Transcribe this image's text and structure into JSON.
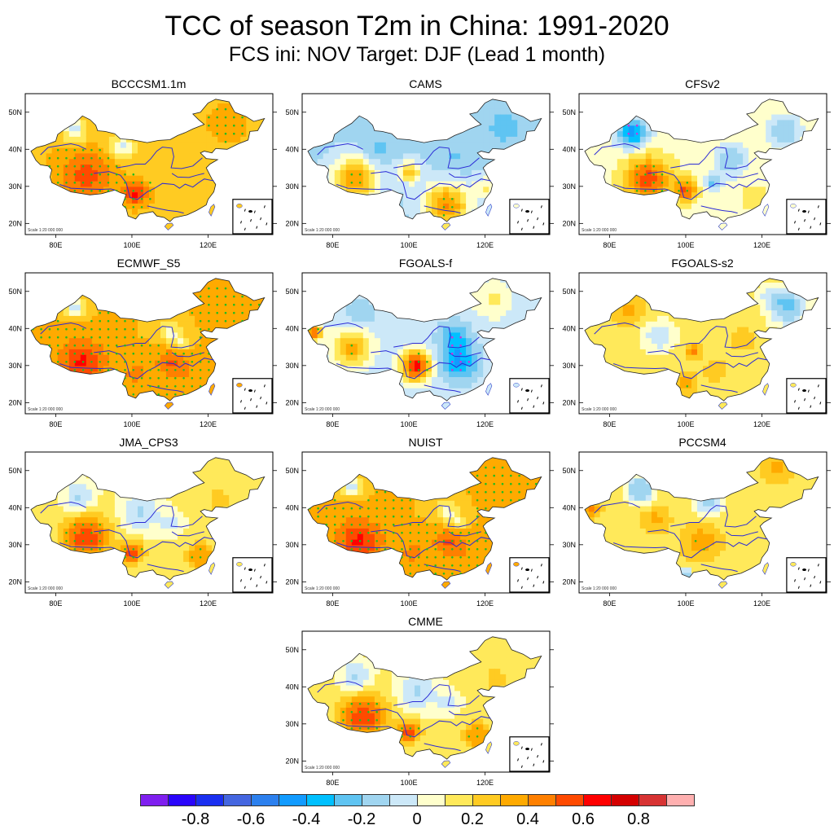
{
  "header": {
    "title": "TCC of season T2m in China: 1991-2020",
    "subtitle": "FCS ini: NOV    Target: DJF (Lead 1 month)"
  },
  "axes": {
    "lat_ticks": [
      "20N",
      "30N",
      "40N",
      "50N"
    ],
    "lon_ticks": [
      "80E",
      "100E",
      "120E"
    ],
    "scale_note": "Scale 1:20 000 000"
  },
  "panels": [
    {
      "name": "BCCCSM1.1m",
      "pattern": "warm",
      "stipple": "dense"
    },
    {
      "name": "CAMS",
      "pattern": "cool-north-warm-south",
      "stipple": "south"
    },
    {
      "name": "CFSv2",
      "pattern": "cool-nw-warm-tibet",
      "stipple": "tibet"
    },
    {
      "name": "ECMWF_S5",
      "pattern": "warm-strong",
      "stipple": "dense"
    },
    {
      "name": "FGOALS-f",
      "pattern": "cool-east-warm-west",
      "stipple": "west"
    },
    {
      "name": "FGOALS-s2",
      "pattern": "mild-warm",
      "stipple": "sparse"
    },
    {
      "name": "JMA_CPS3",
      "pattern": "warm-tibet-cool-north",
      "stipple": "south"
    },
    {
      "name": "NUIST",
      "pattern": "warm-strong",
      "stipple": "dense"
    },
    {
      "name": "PCCSM4",
      "pattern": "mild-warm-cool-north",
      "stipple": "sparse"
    },
    {
      "name": "CMME",
      "pattern": "warm-tibet-cool-north",
      "stipple": "south"
    }
  ],
  "colorbar": {
    "colors": [
      "#7f1fef",
      "#2a05fb",
      "#1a2ff0",
      "#4466e0",
      "#2c80ee",
      "#129bff",
      "#00c0ff",
      "#5fc4f2",
      "#a0d5f0",
      "#cce8f8",
      "#ffffcc",
      "#ffe95a",
      "#ffcb22",
      "#ffaa00",
      "#ff8000",
      "#ff4a00",
      "#ff0000",
      "#d40000",
      "#d73333",
      "#ffb0b0"
    ],
    "labels": [
      "-0.8",
      "-0.6",
      "-0.4",
      "-0.2",
      "0",
      "0.2",
      "0.4",
      "0.6",
      "0.8"
    ],
    "label_values": [
      -0.8,
      -0.6,
      -0.4,
      -0.2,
      0,
      0.2,
      0.4,
      0.6,
      0.8
    ],
    "range": [
      -1.0,
      1.0
    ]
  }
}
